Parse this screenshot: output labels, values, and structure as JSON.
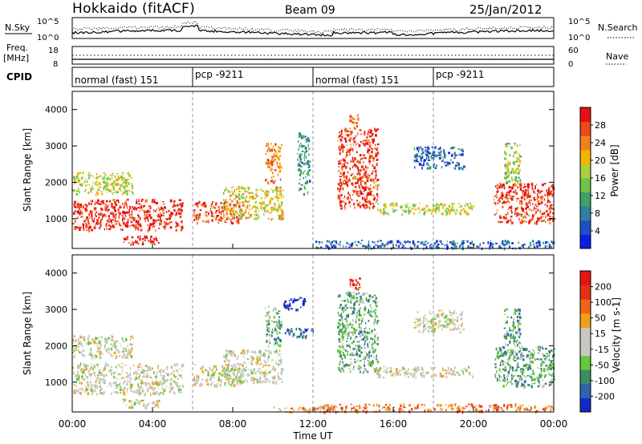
{
  "header": {
    "station": "Hokkaido (fitACF)",
    "beam": "Beam 09",
    "date": "25/Jan/2012"
  },
  "noise_panel": {
    "left_label": "N.Sky",
    "right_label": "N.Search",
    "left_ticks": [
      "10^5",
      "10^0"
    ],
    "right_ticks": [
      "10^5",
      "10^0"
    ]
  },
  "freq_panel": {
    "left_label_1": "Freq.",
    "left_label_2": "[MHz]",
    "right_label": "Nave",
    "left_ticks": [
      "18",
      "8"
    ],
    "right_ticks": [
      "60",
      "0"
    ]
  },
  "cpid": {
    "label": "CPID",
    "segments": [
      {
        "start_h": 0,
        "end_h": 6,
        "text": "normal (fast) 151"
      },
      {
        "start_h": 6,
        "end_h": 12,
        "text": "pcp -9211"
      },
      {
        "start_h": 12,
        "end_h": 18,
        "text": "normal (fast) 151"
      },
      {
        "start_h": 18,
        "end_h": 24,
        "text": "pcp -9211"
      }
    ]
  },
  "colors": {
    "power_scale": [
      "#0a1ee6",
      "#1f4fc8",
      "#2f7fa0",
      "#3fa06a",
      "#6cc24a",
      "#a8d03c",
      "#f5b400",
      "#f08020",
      "#ea4a18",
      "#e81010"
    ],
    "velocity_scale": [
      "#1428c8",
      "#2d64aa",
      "#3c8c64",
      "#64c83c",
      "#c8c8c0",
      "#c8c8c0",
      "#f0a014",
      "#f06418",
      "#e83018",
      "#e81414"
    ],
    "ground_scatter": "#bebeb6"
  },
  "chart_data": [
    {
      "type": "heatmap",
      "panel": "power",
      "xlabel": "Time UT",
      "ylabel": "Slant Range [km]",
      "xlim_hours": [
        0,
        24
      ],
      "ylim_km": [
        180,
        4500
      ],
      "x_ticks": [
        "00:00",
        "04:00",
        "08:00",
        "12:00",
        "16:00",
        "20:00",
        "00:00"
      ],
      "y_ticks": [
        1000,
        2000,
        3000,
        4000
      ],
      "colorbar": {
        "label": "Power [dB]",
        "range": [
          0,
          32
        ],
        "ticks": [
          4,
          8,
          12,
          16,
          20,
          24,
          28
        ]
      },
      "regions": [
        {
          "t0": 0.0,
          "t1": 5.5,
          "r0": 700,
          "r1": 1550,
          "level": 0.92
        },
        {
          "t0": 2.5,
          "t1": 4.3,
          "r0": 300,
          "r1": 550,
          "level": 0.96
        },
        {
          "t0": 0.0,
          "t1": 3.0,
          "r0": 1700,
          "r1": 2300,
          "level": 0.55
        },
        {
          "t0": 6.0,
          "t1": 8.5,
          "r0": 900,
          "r1": 1500,
          "level": 0.85
        },
        {
          "t0": 7.5,
          "t1": 10.5,
          "r0": 1000,
          "r1": 1900,
          "level": 0.6
        },
        {
          "t0": 9.6,
          "t1": 10.4,
          "r0": 2000,
          "r1": 3100,
          "level": 0.75
        },
        {
          "t0": 11.2,
          "t1": 11.8,
          "r0": 1700,
          "r1": 3400,
          "level": 0.3
        },
        {
          "t0": 13.2,
          "t1": 15.2,
          "r0": 1300,
          "r1": 3500,
          "level": 0.9
        },
        {
          "t0": 13.8,
          "t1": 14.3,
          "r0": 3500,
          "r1": 3900,
          "level": 0.8
        },
        {
          "t0": 15.0,
          "t1": 20.0,
          "r0": 1150,
          "r1": 1450,
          "level": 0.55
        },
        {
          "t0": 17.0,
          "t1": 19.5,
          "r0": 2400,
          "r1": 3000,
          "level": 0.2
        },
        {
          "t0": 21.0,
          "t1": 24.0,
          "r0": 900,
          "r1": 2000,
          "level": 0.9
        },
        {
          "t0": 21.5,
          "t1": 22.3,
          "r0": 2000,
          "r1": 3100,
          "level": 0.5
        },
        {
          "t0": 12.0,
          "t1": 24.0,
          "r0": 200,
          "r1": 420,
          "level": 0.18
        }
      ]
    },
    {
      "type": "heatmap",
      "panel": "velocity",
      "xlabel": "Time UT",
      "ylabel": "Slant Range [km]",
      "xlim_hours": [
        0,
        24
      ],
      "ylim_km": [
        180,
        4500
      ],
      "x_ticks": [
        "00:00",
        "04:00",
        "08:00",
        "12:00",
        "16:00",
        "20:00",
        "00:00"
      ],
      "y_ticks": [
        1000,
        2000,
        3000,
        4000
      ],
      "colorbar": {
        "label": "Velocity [m s-1]",
        "ticks": [
          200,
          100,
          50,
          15,
          -15,
          -50,
          -100,
          -200
        ]
      },
      "regions": [
        {
          "t0": 0.0,
          "t1": 5.5,
          "r0": 700,
          "r1": 1550,
          "level": 0.5
        },
        {
          "t0": 2.5,
          "t1": 4.3,
          "r0": 300,
          "r1": 550,
          "level": 0.5
        },
        {
          "t0": 0.0,
          "t1": 3.0,
          "r0": 1700,
          "r1": 2300,
          "level": 0.5
        },
        {
          "t0": 6.0,
          "t1": 8.5,
          "r0": 900,
          "r1": 1500,
          "level": 0.5
        },
        {
          "t0": 7.5,
          "t1": 10.5,
          "r0": 1000,
          "r1": 1900,
          "level": 0.5
        },
        {
          "t0": 9.6,
          "t1": 10.4,
          "r0": 2000,
          "r1": 3100,
          "level": 0.32
        },
        {
          "t0": 10.5,
          "t1": 11.6,
          "r0": 3000,
          "r1": 3350,
          "level": 0.05
        },
        {
          "t0": 10.5,
          "t1": 12.0,
          "r0": 2250,
          "r1": 2500,
          "level": 0.12
        },
        {
          "t0": 13.2,
          "t1": 15.2,
          "r0": 1300,
          "r1": 3500,
          "level": 0.32
        },
        {
          "t0": 13.8,
          "t1": 14.3,
          "r0": 3500,
          "r1": 3900,
          "level": 0.9
        },
        {
          "t0": 15.0,
          "t1": 20.0,
          "r0": 1150,
          "r1": 1450,
          "level": 0.5
        },
        {
          "t0": 17.0,
          "t1": 19.5,
          "r0": 2400,
          "r1": 3000,
          "level": 0.5
        },
        {
          "t0": 21.0,
          "t1": 24.0,
          "r0": 900,
          "r1": 2000,
          "level": 0.3
        },
        {
          "t0": 21.5,
          "t1": 22.3,
          "r0": 2000,
          "r1": 3100,
          "level": 0.3
        },
        {
          "t0": 10.0,
          "t1": 13.0,
          "r0": 200,
          "r1": 350,
          "level": 0.65
        },
        {
          "t0": 12.0,
          "t1": 24.0,
          "r0": 200,
          "r1": 420,
          "level": 0.72
        }
      ]
    }
  ]
}
